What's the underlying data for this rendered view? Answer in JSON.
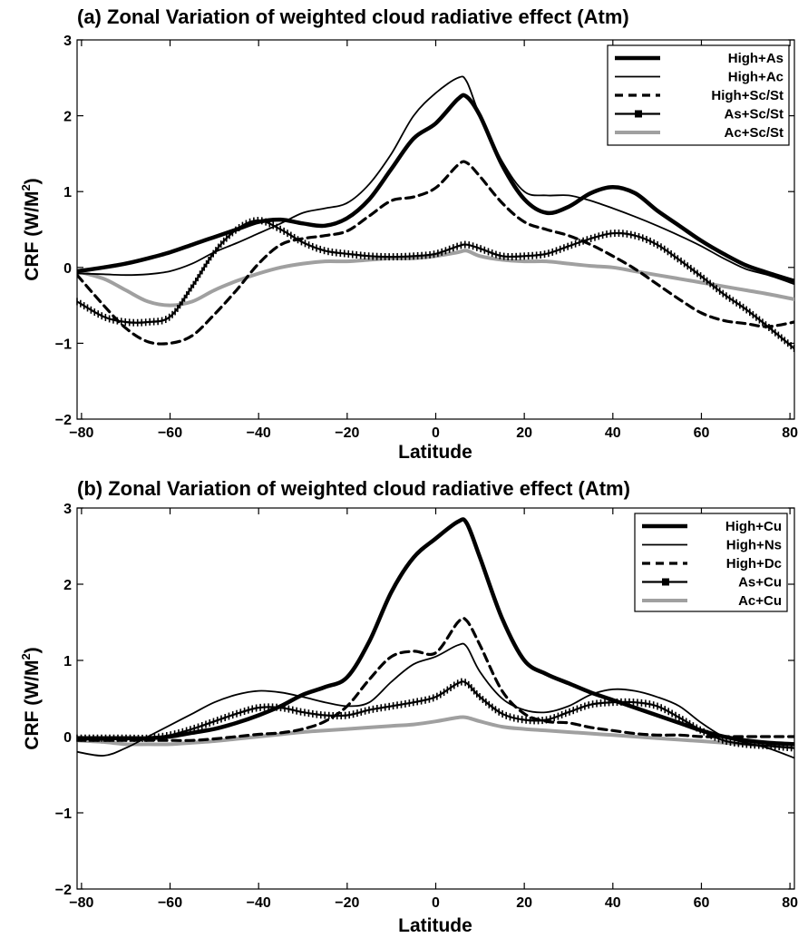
{
  "chart_data": [
    {
      "type": "line",
      "title": "(a) Zonal Variation  of weighted cloud radiative effect (Atm)",
      "xlabel": "Latitude",
      "ylabel_main": "CRF (W/M",
      "ylabel_sup": "2",
      "ylabel_close": ")",
      "xlim": [
        -81,
        81
      ],
      "ylim": [
        -2,
        3
      ],
      "xticks": [
        -80,
        -60,
        -40,
        -20,
        0,
        20,
        40,
        60,
        80
      ],
      "yticks": [
        -2,
        -1,
        0,
        1,
        2,
        3
      ],
      "legend_position": "top-right",
      "x": [
        -81,
        -75,
        -70,
        -65,
        -60,
        -55,
        -50,
        -45,
        -40,
        -35,
        -30,
        -25,
        -20,
        -15,
        -10,
        -5,
        0,
        5,
        7,
        10,
        15,
        20,
        25,
        30,
        35,
        40,
        45,
        50,
        55,
        60,
        65,
        70,
        75,
        81
      ],
      "series": [
        {
          "name": "High+As",
          "style": "thick",
          "values": [
            -0.05,
            0,
            0.05,
            0.12,
            0.2,
            0.3,
            0.4,
            0.5,
            0.6,
            0.63,
            0.58,
            0.55,
            0.65,
            0.9,
            1.3,
            1.7,
            1.9,
            2.22,
            2.25,
            2.0,
            1.35,
            0.9,
            0.72,
            0.8,
            0.98,
            1.06,
            0.98,
            0.75,
            0.55,
            0.35,
            0.18,
            0.03,
            -0.07,
            -0.18
          ]
        },
        {
          "name": "High+Ac",
          "style": "thin",
          "values": [
            -0.08,
            -0.09,
            -0.1,
            -0.09,
            -0.05,
            0.05,
            0.2,
            0.32,
            0.45,
            0.58,
            0.72,
            0.78,
            0.85,
            1.1,
            1.5,
            2.0,
            2.3,
            2.5,
            2.45,
            2.0,
            1.4,
            1.0,
            0.95,
            0.95,
            0.88,
            0.78,
            0.67,
            0.55,
            0.42,
            0.28,
            0.12,
            -0.02,
            -0.1,
            -0.22
          ]
        },
        {
          "name": "High+Sc/St",
          "style": "dashed",
          "values": [
            -0.1,
            -0.5,
            -0.8,
            -0.98,
            -1.0,
            -0.9,
            -0.62,
            -0.3,
            0.05,
            0.3,
            0.38,
            0.42,
            0.48,
            0.68,
            0.88,
            0.93,
            1.05,
            1.35,
            1.38,
            1.2,
            0.85,
            0.6,
            0.5,
            0.42,
            0.3,
            0.15,
            -0.02,
            -0.22,
            -0.42,
            -0.6,
            -0.7,
            -0.74,
            -0.78,
            -0.72
          ]
        },
        {
          "name": "As+Sc/St",
          "style": "marker",
          "values": [
            -0.45,
            -0.65,
            -0.72,
            -0.72,
            -0.65,
            -0.25,
            0.2,
            0.5,
            0.62,
            0.5,
            0.33,
            0.22,
            0.18,
            0.15,
            0.14,
            0.15,
            0.18,
            0.28,
            0.3,
            0.25,
            0.15,
            0.15,
            0.18,
            0.28,
            0.38,
            0.45,
            0.42,
            0.3,
            0.1,
            -0.12,
            -0.35,
            -0.55,
            -0.78,
            -1.07
          ]
        },
        {
          "name": "Ac+Sc/St",
          "style": "gray",
          "values": [
            -0.05,
            -0.15,
            -0.3,
            -0.45,
            -0.5,
            -0.45,
            -0.3,
            -0.18,
            -0.08,
            0.0,
            0.05,
            0.08,
            0.08,
            0.1,
            0.12,
            0.12,
            0.15,
            0.2,
            0.22,
            0.15,
            0.1,
            0.08,
            0.08,
            0.05,
            0.02,
            0.0,
            -0.05,
            -0.1,
            -0.15,
            -0.2,
            -0.25,
            -0.3,
            -0.35,
            -0.42
          ]
        }
      ]
    },
    {
      "type": "line",
      "title": "(b) Zonal Variation  of weighted cloud radiative effect (Atm)",
      "xlabel": "Latitude",
      "ylabel_main": "CRF (W/M",
      "ylabel_sup": "2",
      "ylabel_close": ")",
      "xlim": [
        -81,
        81
      ],
      "ylim": [
        -2,
        3
      ],
      "xticks": [
        -80,
        -60,
        -40,
        -20,
        0,
        20,
        40,
        60,
        80
      ],
      "yticks": [
        -2,
        -1,
        0,
        1,
        2,
        3
      ],
      "legend_position": "top-right",
      "x": [
        -81,
        -75,
        -70,
        -65,
        -60,
        -55,
        -50,
        -45,
        -40,
        -35,
        -30,
        -25,
        -20,
        -15,
        -10,
        -5,
        0,
        5,
        7,
        10,
        15,
        20,
        25,
        30,
        35,
        40,
        45,
        50,
        55,
        60,
        65,
        70,
        75,
        81
      ],
      "series": [
        {
          "name": "High+Cu",
          "style": "thick",
          "values": [
            -0.02,
            -0.02,
            -0.02,
            -0.02,
            0.0,
            0.05,
            0.1,
            0.18,
            0.28,
            0.4,
            0.55,
            0.65,
            0.78,
            1.25,
            1.9,
            2.35,
            2.6,
            2.82,
            2.8,
            2.35,
            1.55,
            1.0,
            0.82,
            0.7,
            0.58,
            0.48,
            0.38,
            0.28,
            0.18,
            0.08,
            0.0,
            -0.05,
            -0.08,
            -0.1
          ]
        },
        {
          "name": "High+Ns",
          "style": "thin",
          "values": [
            -0.2,
            -0.25,
            -0.15,
            0.0,
            0.15,
            0.3,
            0.45,
            0.55,
            0.6,
            0.58,
            0.52,
            0.45,
            0.4,
            0.45,
            0.72,
            0.95,
            1.05,
            1.2,
            1.18,
            0.85,
            0.5,
            0.35,
            0.32,
            0.4,
            0.55,
            0.62,
            0.6,
            0.52,
            0.4,
            0.18,
            0.0,
            -0.08,
            -0.15,
            -0.28
          ]
        },
        {
          "name": "High+Dc",
          "style": "dashed",
          "values": [
            -0.05,
            -0.05,
            -0.05,
            -0.05,
            -0.05,
            -0.05,
            -0.03,
            0.0,
            0.03,
            0.05,
            0.1,
            0.2,
            0.4,
            0.75,
            1.05,
            1.12,
            1.1,
            1.5,
            1.52,
            1.2,
            0.6,
            0.3,
            0.2,
            0.18,
            0.12,
            0.08,
            0.04,
            0.02,
            0.02,
            0.0,
            0.0,
            0.0,
            0.0,
            0.0
          ]
        },
        {
          "name": "As+Cu",
          "style": "marker",
          "values": [
            -0.02,
            -0.02,
            -0.02,
            -0.02,
            0.02,
            0.1,
            0.2,
            0.3,
            0.38,
            0.38,
            0.32,
            0.28,
            0.28,
            0.35,
            0.4,
            0.45,
            0.52,
            0.7,
            0.7,
            0.52,
            0.3,
            0.22,
            0.22,
            0.32,
            0.42,
            0.45,
            0.45,
            0.4,
            0.25,
            0.08,
            -0.05,
            -0.1,
            -0.12,
            -0.15
          ]
        },
        {
          "name": "Ac+Cu",
          "style": "gray",
          "values": [
            -0.05,
            -0.07,
            -0.1,
            -0.1,
            -0.1,
            -0.08,
            -0.06,
            -0.03,
            0.0,
            0.03,
            0.06,
            0.08,
            0.1,
            0.12,
            0.14,
            0.16,
            0.2,
            0.25,
            0.25,
            0.2,
            0.13,
            0.1,
            0.08,
            0.06,
            0.04,
            0.02,
            0.0,
            -0.02,
            -0.04,
            -0.06,
            -0.08,
            -0.1,
            -0.12,
            -0.14
          ]
        }
      ]
    }
  ]
}
